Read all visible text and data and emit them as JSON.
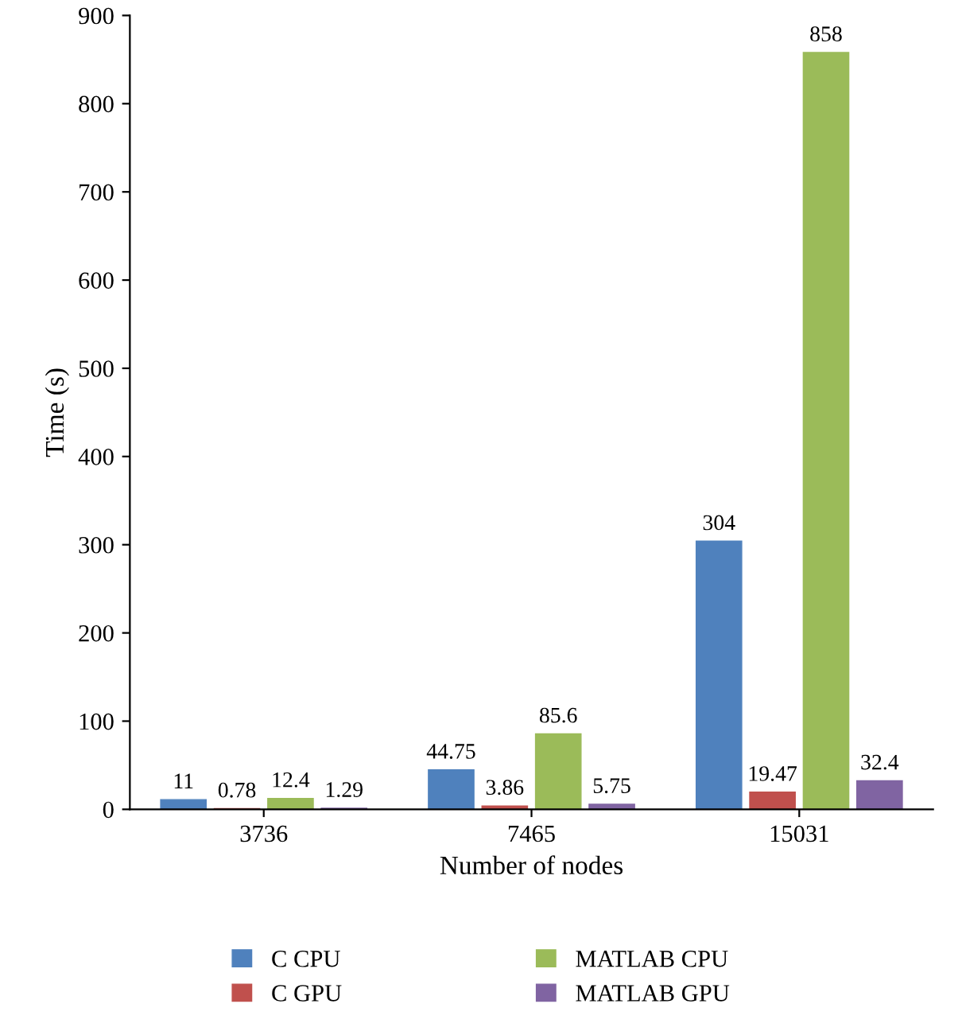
{
  "chart_data": {
    "type": "bar",
    "xlabel": "Number of nodes",
    "ylabel": "Time (s)",
    "categories": [
      "3736",
      "7465",
      "15031"
    ],
    "series": [
      {
        "name": "C CPU",
        "color": "#4f81bd",
        "values": [
          11,
          44.75,
          304
        ]
      },
      {
        "name": "C GPU",
        "color": "#c0504d",
        "values": [
          0.78,
          3.86,
          19.47
        ]
      },
      {
        "name": "MATLAB CPU",
        "color": "#9bbb59",
        "values": [
          12.4,
          85.6,
          858
        ]
      },
      {
        "name": "MATLAB GPU",
        "color": "#8064a2",
        "values": [
          1.29,
          5.75,
          32.4
        ]
      }
    ],
    "ylim": [
      0,
      900
    ],
    "yticks": [
      0,
      100,
      200,
      300,
      400,
      500,
      600,
      700,
      800,
      900
    ],
    "data_labels": true,
    "grid": false,
    "legend": "bottom"
  }
}
